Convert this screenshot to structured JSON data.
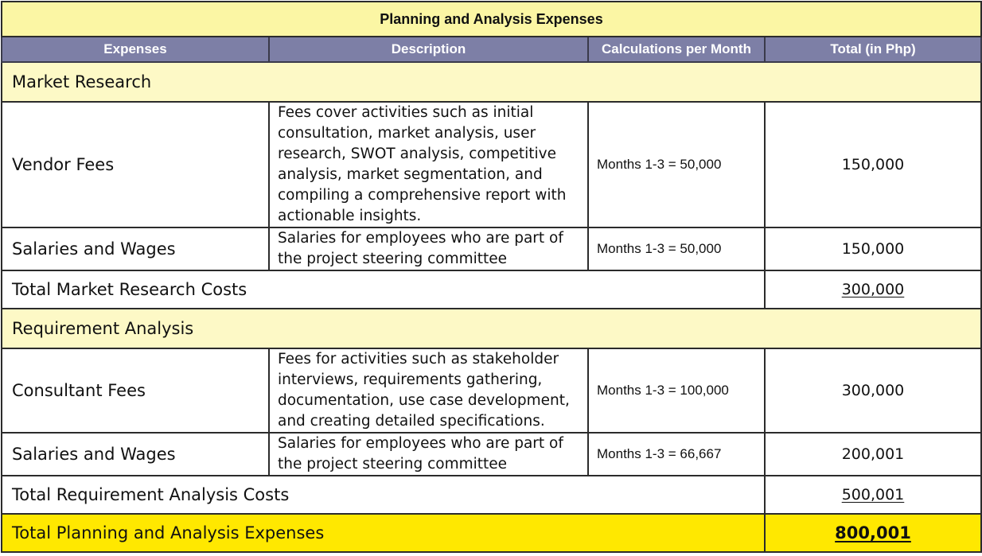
{
  "title": "Planning and Analysis Expenses",
  "columns": [
    "Expenses",
    "Description",
    "Calculations per Month",
    "Total (in Php)"
  ],
  "sections": [
    {
      "name": "Market Research",
      "rows": [
        {
          "expense": "Vendor Fees",
          "description": "Fees cover activities such as initial consultation, market analysis, user research, SWOT analysis, competitive analysis, market segmentation, and compiling a comprehensive report with actionable insights.",
          "calculation": "Months 1-3 = 50,000",
          "total": "150,000"
        },
        {
          "expense": "Salaries and Wages",
          "description": "Salaries for employees who are part of the project steering committee",
          "calculation": "Months 1-3 = 50,000",
          "total": "150,000"
        }
      ],
      "subtotal_label": "Total Market Research Costs",
      "subtotal": "300,000"
    },
    {
      "name": "Requirement Analysis",
      "rows": [
        {
          "expense": "Consultant Fees",
          "description": "Fees for activities such as stakeholder interviews, requirements gathering, documentation, use case development, and creating detailed specifications.",
          "calculation": "Months 1-3 = 100,000",
          "total": "300,000"
        },
        {
          "expense": "Salaries and Wages",
          "description": "Salaries for employees who are part of the project steering committee",
          "calculation": "Months 1-3 = 66,667",
          "total": "200,001"
        }
      ],
      "subtotal_label": "Total Requirement Analysis Costs",
      "subtotal": "500,001"
    }
  ],
  "grand_total_label": "Total Planning and Analysis Expenses",
  "grand_total": "800,001",
  "colors": {
    "title_bg": "#fbf6a4",
    "header_bg": "#7d7fa6",
    "section_bg": "#fdf9c6",
    "grand_total_bg": "#ffe800"
  }
}
